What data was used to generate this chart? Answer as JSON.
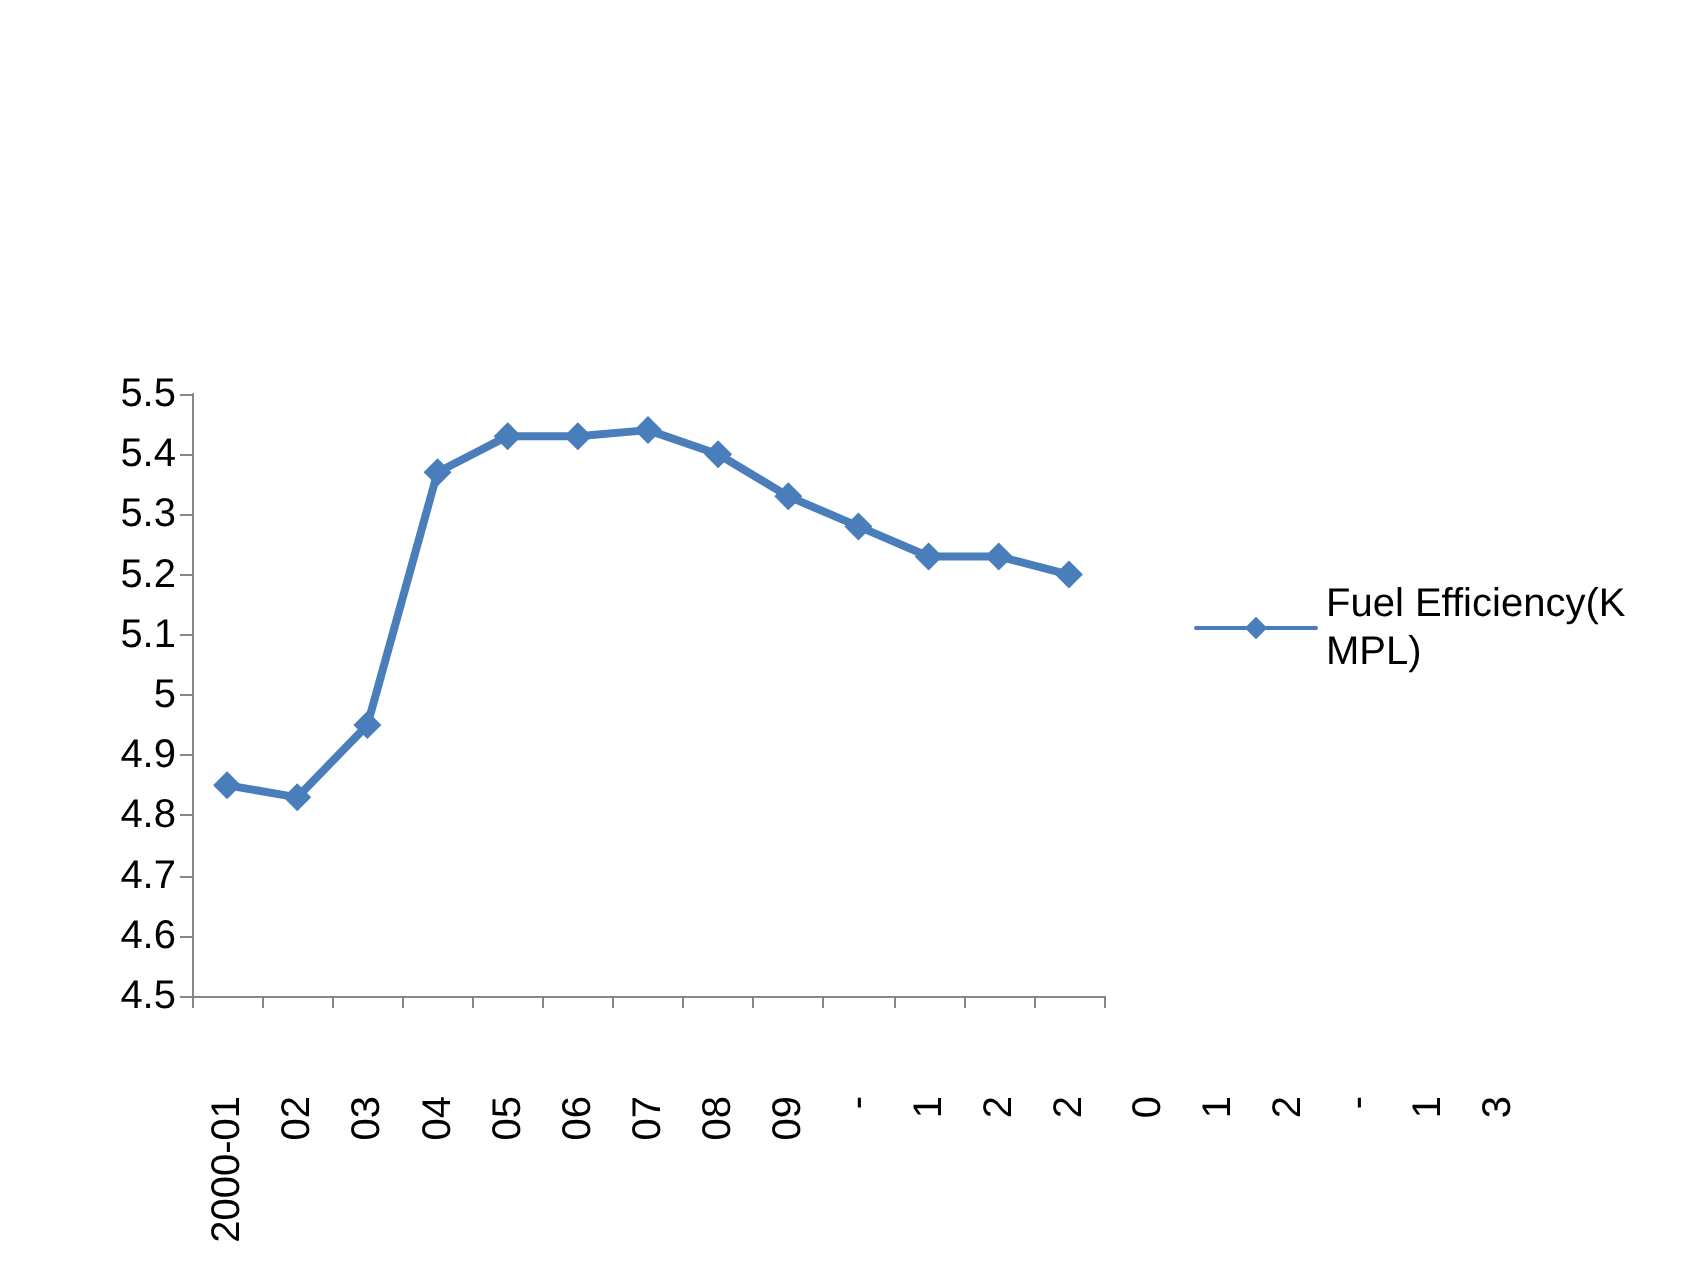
{
  "chart_data": {
    "type": "line",
    "categories": [
      "2000-01",
      "02",
      "03",
      "04",
      "05",
      "06",
      "07",
      "08",
      "09",
      "-",
      "1",
      "2",
      "2"
    ],
    "series": [
      {
        "name": "Fuel Efficiency(KMPL)",
        "color": "#4a7ebb",
        "values": [
          4.85,
          4.83,
          4.95,
          5.37,
          5.43,
          5.43,
          5.44,
          5.4,
          5.33,
          5.28,
          5.23,
          5.23,
          5.2
        ]
      }
    ],
    "ylim": [
      4.5,
      5.5
    ],
    "yticks": [
      4.5,
      4.6,
      4.7,
      4.8,
      4.9,
      5,
      5.1,
      5.2,
      5.3,
      5.4,
      5.5
    ],
    "annotations": [
      "0",
      "1",
      "2",
      "-",
      "1",
      "3"
    ],
    "grid": false,
    "legend": "right",
    "marker": "diamond",
    "line_style": "solid"
  }
}
